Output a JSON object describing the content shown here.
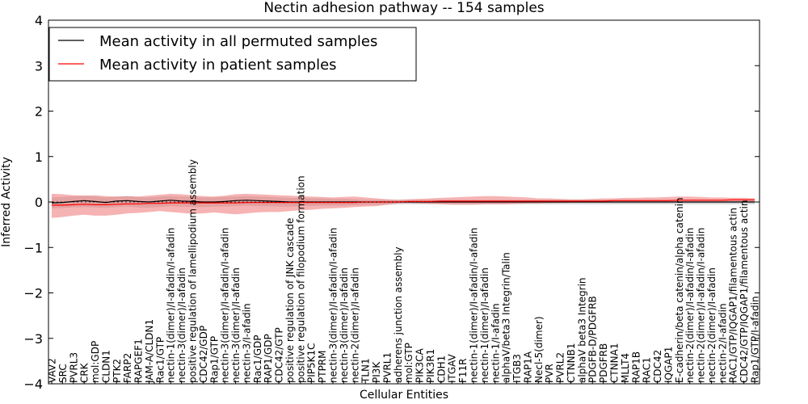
{
  "chart_data": {
    "type": "line",
    "title": "Nectin adhesion pathway -- 154 samples",
    "xlabel": "Cellular Entities",
    "ylabel": "Inferred Activity",
    "ylim": [
      -4,
      4
    ],
    "yticks": [
      "4",
      "3",
      "2",
      "1",
      "0",
      "−1",
      "−2",
      "−3",
      "−4"
    ],
    "legend_position": "top-left",
    "categories": [
      "VAV2",
      "SRC",
      "PVRL3",
      "CRK",
      "mol:GDP",
      "CLDN1",
      "PTK2",
      "FARP2",
      "RAPGEF1",
      "JAM-A/CLDN1",
      "Rac1/GTP",
      "nectin-1(dimer)/I-afadin/I-afadin",
      "nectin-3(dimer)/I-afadin",
      "positive regulation of lamellipodium assembly",
      "CDC42/GDP",
      "Rap1/GTP",
      "nectin-3(dimer)/I-afadin/I-afadin",
      "nectin-3(dimer)/I-afadin",
      "nectin-3/I-afadin",
      "Rac1/GDP",
      "RAP1/GDP",
      "CDC42/GTP",
      "positive regulation of JNK cascade",
      "positive regulation of filopodium formation",
      "PIP5K1C",
      "PTPRM",
      "nectin-3(dimer)/I-afadin/I-afadin",
      "nectin-3(dimer)/I-afadin",
      "nectin-2(dimer)/I-afadin",
      "TLN1",
      "PI3K",
      "PVRL1",
      "adherens junction assembly",
      "mol:GTP",
      "PIK3CA",
      "PIK3R1",
      "CDH1",
      "ITGAV",
      "F11R",
      "nectin-1(dimer)/I-afadin/I-afadin",
      "nectin-1(dimer)/I-afadin",
      "nectin-1/I-afadin",
      "alphaV/beta3 Integrin/Talin",
      "ITGB3",
      "RAP1A",
      "Necl-5(dimer)",
      "PVR",
      "PVRL2",
      "CTNNB1",
      "alphaV beta3 Integrin",
      "PDGFB-D/PDGFRB",
      "PDGFRB",
      "CTNNA1",
      "MLLT4",
      "RAP1B",
      "RAC1",
      "CDC42",
      "IQGAP1",
      "E-cadherin/beta catenin/alpha catenin",
      "nectin-2(dimer)/I-afadin/I-afadin",
      "nectin-2(dimer)/I-afadin/I-afadin",
      "nectin-2(dimer)/I-afadin",
      "nectin-2/I-afadin",
      "RAC1/GTP/IQGAP1/filamentous actin",
      "CDC42/GTP/IQGAP1/filamentous actin",
      "Rap1/GTP/I-afadin"
    ],
    "mean_colors": {
      "permuted": "#000000",
      "patient": "#ff0000",
      "patient_band": "#f08080",
      "permuted_band": "#c8c8c8"
    },
    "series": [
      {
        "name": "Mean activity in all permuted samples",
        "color": "#000000",
        "values": [
          -0.02,
          -0.01,
          0.01,
          0.03,
          0.01,
          -0.01,
          0.02,
          0.03,
          0.01,
          0.0,
          0.02,
          0.04,
          0.02,
          0.01,
          0.0,
          0.0,
          0.01,
          0.03,
          0.04,
          0.03,
          0.02,
          0.01,
          0.0,
          0.0,
          0.0,
          0.0,
          0.0,
          0.0,
          0.0,
          0.0,
          0.0,
          0.0,
          0.0,
          0.0,
          0.0,
          0.0,
          0.0,
          0.0,
          0.0,
          0.0,
          0.0,
          0.0,
          0.0,
          0.0,
          0.0,
          0.0,
          0.0,
          0.0,
          0.0,
          0.0,
          0.0,
          0.0,
          0.0,
          0.0,
          0.0,
          0.0,
          0.0,
          0.0,
          0.0,
          0.0,
          0.0,
          0.0,
          0.0,
          0.0,
          0.0,
          0.0
        ],
        "band_low": [
          -0.14,
          -0.13,
          -0.12,
          -0.11,
          -0.12,
          -0.13,
          -0.11,
          -0.1,
          -0.12,
          -0.12,
          -0.11,
          -0.09,
          -0.1,
          -0.11,
          -0.11,
          -0.1,
          -0.1,
          -0.09,
          -0.08,
          -0.09,
          -0.09,
          -0.1,
          -0.1,
          -0.09,
          -0.09,
          -0.08,
          -0.08,
          -0.08,
          -0.07,
          -0.06,
          -0.06,
          -0.06,
          -0.05,
          -0.05,
          -0.05,
          -0.05,
          -0.05,
          -0.05,
          -0.05,
          -0.05,
          -0.05,
          -0.05,
          -0.05,
          -0.05,
          -0.05,
          -0.05,
          -0.05,
          -0.05,
          -0.05,
          -0.05,
          -0.05,
          -0.05,
          -0.05,
          -0.05,
          -0.05,
          -0.05,
          -0.05,
          -0.05,
          -0.05,
          -0.05,
          -0.05,
          -0.05,
          -0.05,
          -0.05,
          -0.05,
          -0.05
        ],
        "band_high": [
          0.1,
          0.11,
          0.13,
          0.14,
          0.12,
          0.1,
          0.12,
          0.13,
          0.11,
          0.1,
          0.12,
          0.13,
          0.12,
          0.11,
          0.1,
          0.1,
          0.11,
          0.12,
          0.13,
          0.12,
          0.11,
          0.1,
          0.09,
          0.09,
          0.08,
          0.08,
          0.07,
          0.07,
          0.06,
          0.05,
          0.05,
          0.05,
          0.05,
          0.05,
          0.05,
          0.05,
          0.05,
          0.05,
          0.05,
          0.05,
          0.05,
          0.05,
          0.05,
          0.05,
          0.05,
          0.05,
          0.05,
          0.05,
          0.05,
          0.05,
          0.05,
          0.05,
          0.05,
          0.05,
          0.05,
          0.05,
          0.05,
          0.05,
          0.05,
          0.05,
          0.05,
          0.05,
          0.05,
          0.05,
          0.05,
          0.05
        ]
      },
      {
        "name": "Mean activity in patient samples",
        "color": "#ff0000",
        "values": [
          -0.07,
          -0.07,
          -0.06,
          -0.05,
          -0.06,
          -0.06,
          -0.05,
          -0.04,
          -0.04,
          -0.03,
          -0.03,
          -0.02,
          -0.02,
          -0.02,
          -0.02,
          -0.02,
          -0.02,
          -0.02,
          -0.01,
          -0.01,
          -0.01,
          -0.01,
          -0.01,
          -0.01,
          -0.01,
          -0.01,
          -0.01,
          -0.01,
          -0.01,
          0.0,
          0.0,
          0.0,
          0.0,
          0.01,
          0.01,
          0.01,
          0.02,
          0.02,
          0.02,
          0.02,
          0.02,
          0.02,
          0.02,
          0.02,
          0.02,
          0.02,
          0.02,
          0.02,
          0.02,
          0.02,
          0.02,
          0.02,
          0.03,
          0.03,
          0.03,
          0.03,
          0.03,
          0.03,
          0.04,
          0.04,
          0.04,
          0.04,
          0.04,
          0.05,
          0.05,
          0.05
        ],
        "band_low": [
          -0.35,
          -0.33,
          -0.3,
          -0.28,
          -0.3,
          -0.3,
          -0.28,
          -0.25,
          -0.24,
          -0.22,
          -0.2,
          -0.22,
          -0.24,
          -0.26,
          -0.25,
          -0.23,
          -0.25,
          -0.27,
          -0.25,
          -0.23,
          -0.22,
          -0.22,
          -0.2,
          -0.18,
          -0.17,
          -0.15,
          -0.14,
          -0.13,
          -0.11,
          -0.1,
          -0.09,
          -0.06,
          -0.03,
          -0.02,
          -0.03,
          -0.04,
          -0.05,
          -0.06,
          -0.06,
          -0.06,
          -0.05,
          -0.05,
          -0.05,
          -0.04,
          -0.03,
          -0.03,
          -0.02,
          -0.02,
          -0.01,
          -0.01,
          -0.01,
          -0.01,
          -0.01,
          -0.01,
          -0.01,
          -0.01,
          -0.01,
          -0.01,
          -0.01,
          0.0,
          0.0,
          0.0,
          0.0,
          0.0,
          0.0,
          0.0
        ],
        "band_high": [
          0.18,
          0.17,
          0.15,
          0.14,
          0.15,
          0.13,
          0.12,
          0.13,
          0.12,
          0.14,
          0.16,
          0.18,
          0.17,
          0.15,
          0.13,
          0.12,
          0.14,
          0.17,
          0.18,
          0.17,
          0.16,
          0.15,
          0.14,
          0.13,
          0.12,
          0.11,
          0.1,
          0.11,
          0.12,
          0.1,
          0.08,
          0.06,
          0.05,
          0.06,
          0.07,
          0.08,
          0.09,
          0.1,
          0.11,
          0.12,
          0.13,
          0.13,
          0.12,
          0.11,
          0.1,
          0.08,
          0.08,
          0.07,
          0.06,
          0.06,
          0.07,
          0.08,
          0.08,
          0.09,
          0.09,
          0.1,
          0.1,
          0.11,
          0.12,
          0.12,
          0.11,
          0.1,
          0.1,
          0.09,
          0.09,
          0.08
        ]
      }
    ]
  }
}
